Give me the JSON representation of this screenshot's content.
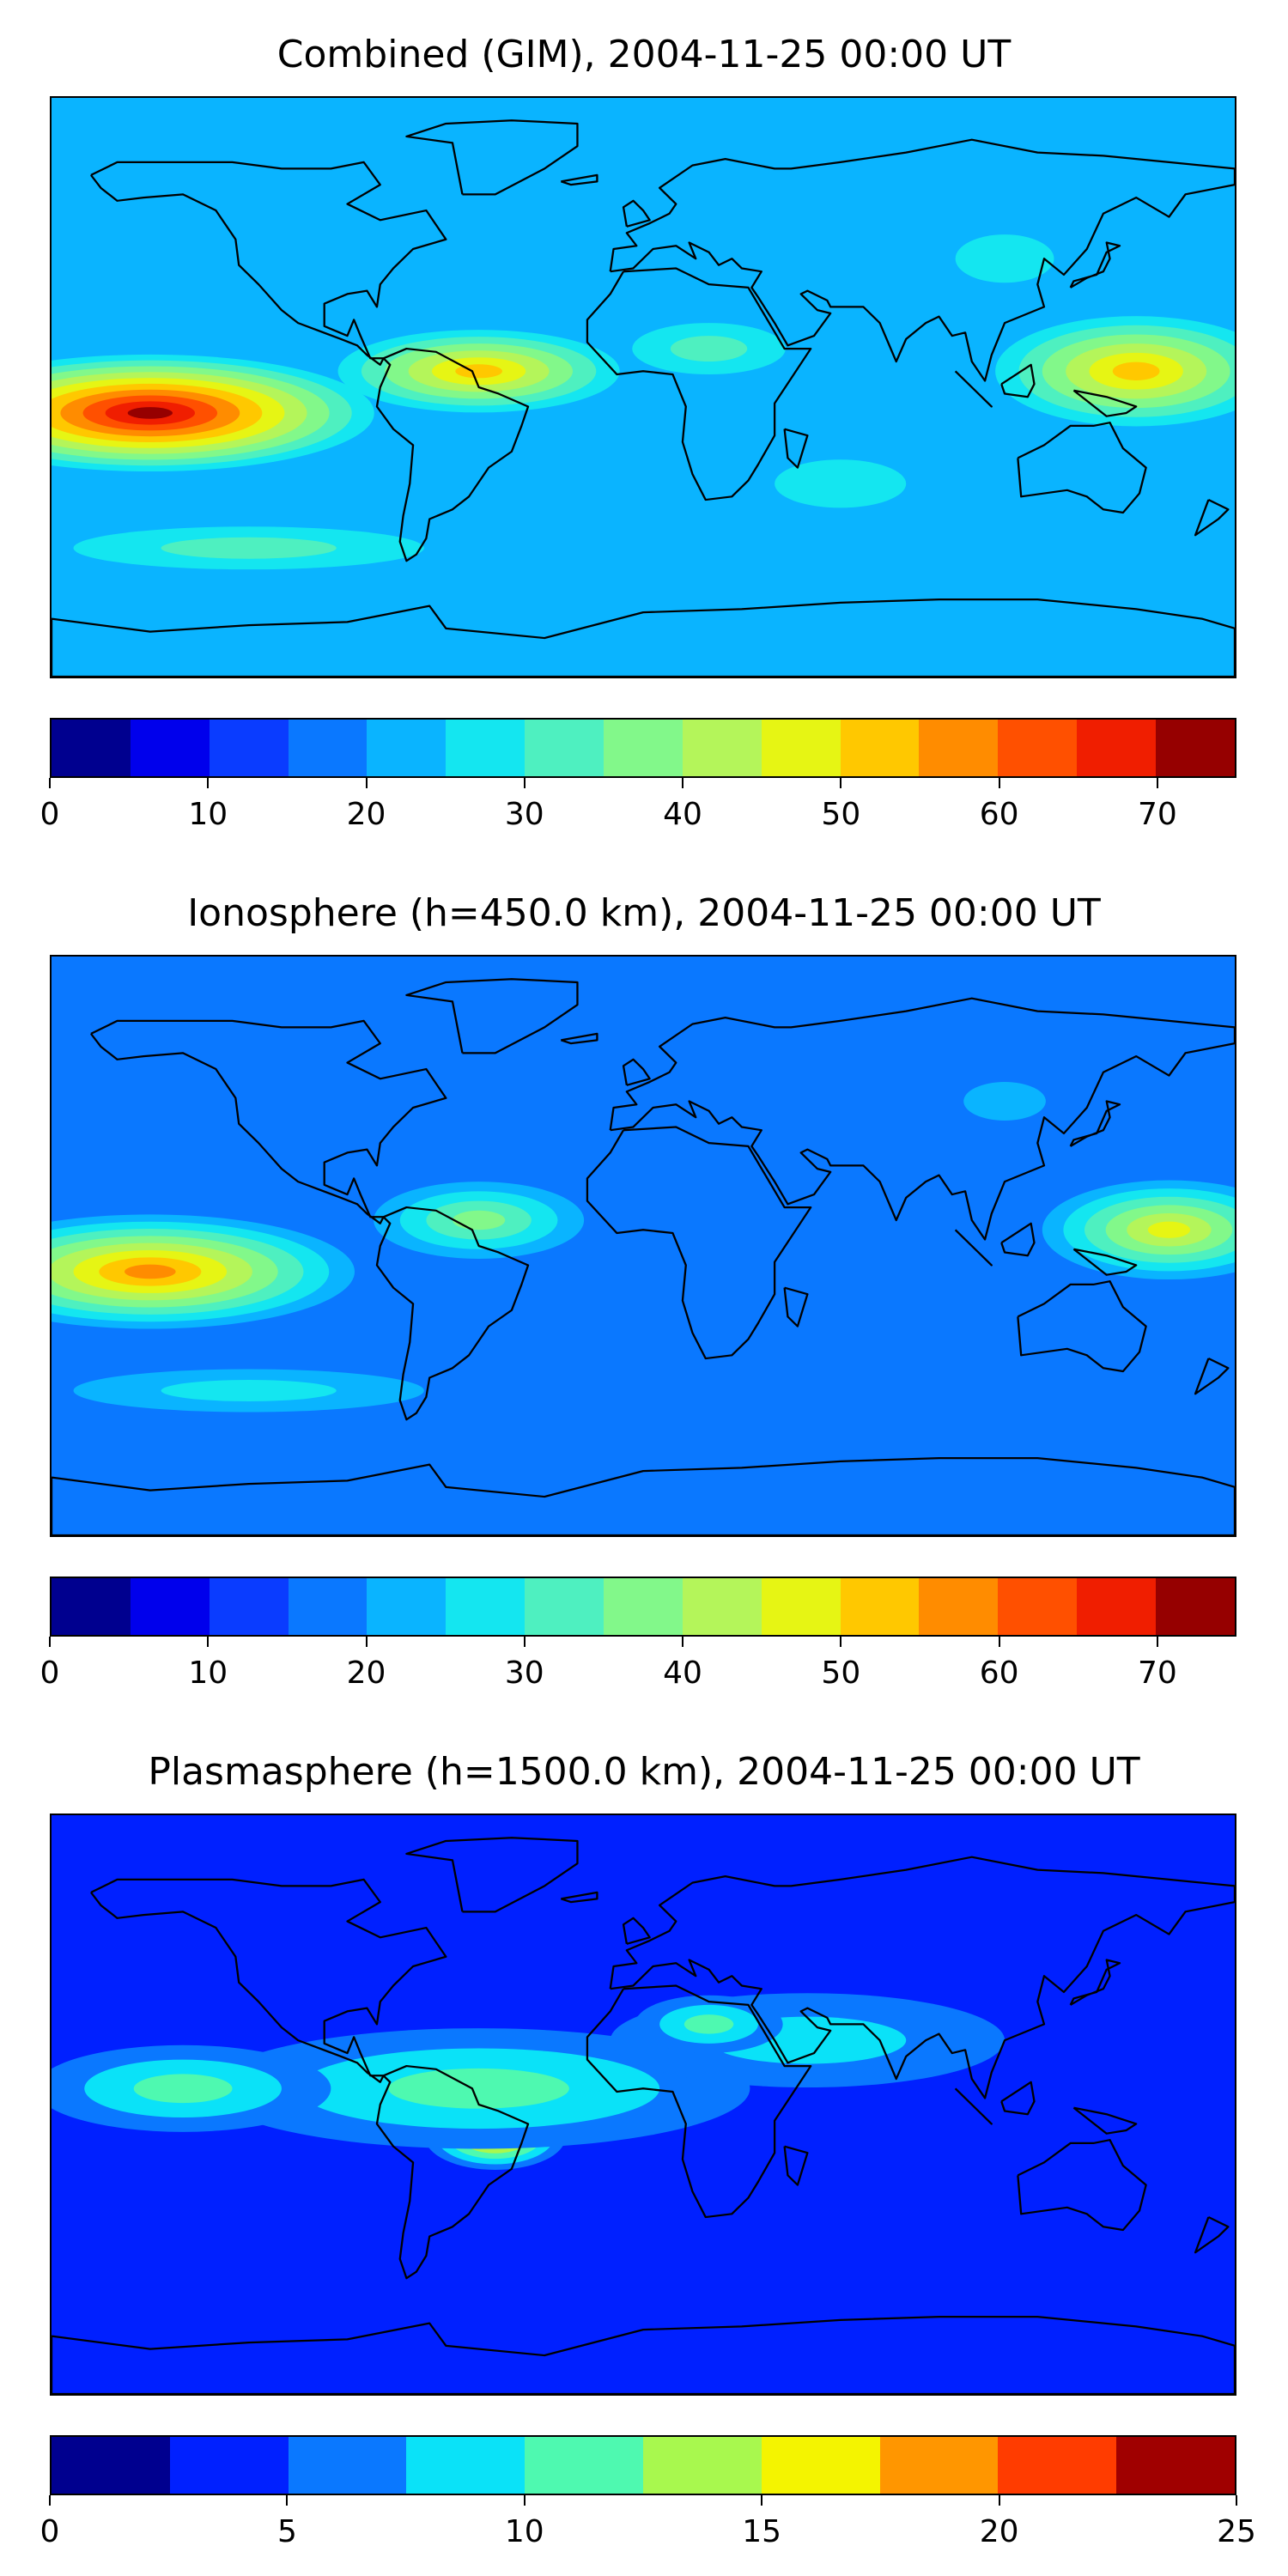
{
  "colors": {
    "jet15": [
      "#00008f",
      "#0000ec",
      "#0a3cff",
      "#0a78ff",
      "#0ab4ff",
      "#14e6f0",
      "#4ef0c0",
      "#82f88a",
      "#b4f55a",
      "#e6f514",
      "#ffc800",
      "#ff8c00",
      "#ff5000",
      "#f01e00",
      "#960000"
    ],
    "jet10": [
      "#00008f",
      "#0020ff",
      "#0a78ff",
      "#0ae2f8",
      "#4ef9b0",
      "#a8f84e",
      "#f4f400",
      "#ff9600",
      "#ff3c00",
      "#a00000"
    ],
    "coastline": "#000000"
  },
  "panels": [
    {
      "title": "Combined (GIM), 2004-11-25 00:00 UT",
      "colorbar": {
        "min": 0,
        "max": 75,
        "step": 5,
        "ticks": [
          "0",
          "10",
          "20",
          "30",
          "40",
          "50",
          "60",
          "70"
        ],
        "tick_values": [
          0,
          10,
          20,
          30,
          40,
          50,
          60,
          70
        ]
      },
      "features": [
        {
          "lon": -150,
          "lat": -8,
          "sx": 75,
          "sy": 20,
          "level": 14
        },
        {
          "lon": 150,
          "lat": 5,
          "sx": 50,
          "sy": 20,
          "level": 10
        },
        {
          "lon": -50,
          "lat": 5,
          "sx": 50,
          "sy": 15,
          "level": 10
        },
        {
          "lon": 20,
          "lat": 12,
          "sx": 35,
          "sy": 12,
          "level": 6
        },
        {
          "lon": 110,
          "lat": 40,
          "sx": 30,
          "sy": 15,
          "level": 5
        },
        {
          "lon": 60,
          "lat": -30,
          "sx": 40,
          "sy": 15,
          "level": 5
        },
        {
          "lon": -120,
          "lat": -50,
          "sx": 80,
          "sy": 10,
          "level": 6
        }
      ],
      "baseline": 4
    },
    {
      "title": "Ionosphere  (h=450.0 km), 2004-11-25 00:00 UT",
      "colorbar": {
        "min": 0,
        "max": 75,
        "step": 5,
        "ticks": [
          "0",
          "10",
          "20",
          "30",
          "40",
          "50",
          "60",
          "70"
        ],
        "tick_values": [
          0,
          10,
          20,
          30,
          40,
          50,
          60,
          70
        ]
      },
      "features": [
        {
          "lon": -150,
          "lat": -8,
          "sx": 70,
          "sy": 20,
          "level": 11
        },
        {
          "lon": 160,
          "lat": 5,
          "sx": 45,
          "sy": 18,
          "level": 9
        },
        {
          "lon": -50,
          "lat": 8,
          "sx": 40,
          "sy": 15,
          "level": 7
        },
        {
          "lon": 110,
          "lat": 45,
          "sx": 25,
          "sy": 12,
          "level": 4
        },
        {
          "lon": -120,
          "lat": -45,
          "sx": 80,
          "sy": 10,
          "level": 5
        },
        {
          "lon": 60,
          "lat": -25,
          "sx": 40,
          "sy": 12,
          "level": 3
        }
      ],
      "baseline": 3
    },
    {
      "title": "Plasmasphere (h=1500.0 km), 2004-11-25 00:00 UT",
      "colorbar": {
        "min": 0,
        "max": 25,
        "step": 2.5,
        "ticks": [
          "0",
          "5",
          "10",
          "15",
          "20",
          "25"
        ],
        "tick_values": [
          0,
          5,
          10,
          15,
          20,
          25
        ]
      },
      "features": [
        {
          "lon": -45,
          "lat": -10,
          "sx": 25,
          "sy": 12,
          "level": 7
        },
        {
          "lon": -50,
          "lat": 5,
          "sx": 110,
          "sy": 25,
          "level": 4
        },
        {
          "lon": 50,
          "lat": 20,
          "sx": 90,
          "sy": 22,
          "level": 3
        },
        {
          "lon": -140,
          "lat": 5,
          "sx": 60,
          "sy": 18,
          "level": 4
        },
        {
          "lon": 20,
          "lat": 25,
          "sx": 30,
          "sy": 12,
          "level": 4
        }
      ],
      "baseline": 1
    }
  ]
}
